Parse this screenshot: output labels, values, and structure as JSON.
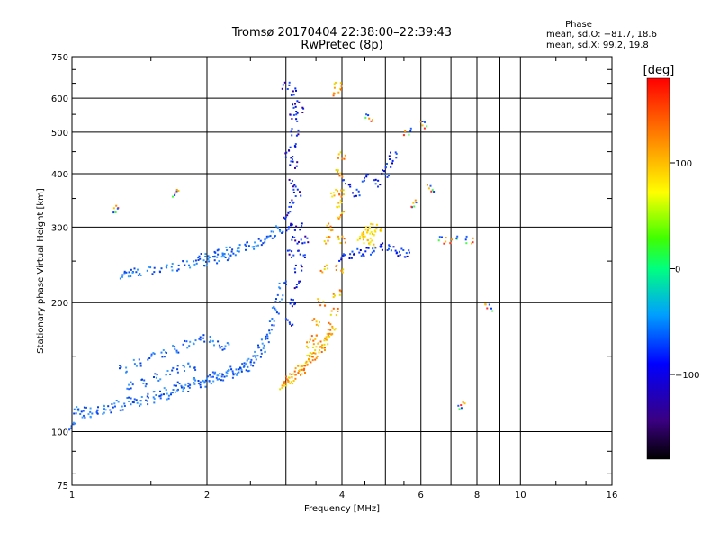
{
  "chart_data": {
    "type": "scatter",
    "title": "Tromsø 20170404 22:38:00–22:39:43",
    "subtitle": "RwPretec (8p)",
    "xlabel": "Frequency [MHz]",
    "ylabel": "Stationary phase Virtual Height [km]",
    "x_scale": "log",
    "y_scale": "log",
    "xlim": [
      1,
      16
    ],
    "ylim": [
      75,
      750
    ],
    "x_ticks": [
      1,
      2,
      4,
      6,
      8,
      10,
      16
    ],
    "x_tick_labels": [
      "1",
      "2",
      "4",
      "6",
      "8",
      "10",
      "16"
    ],
    "x_minor_ticks": [
      3,
      5,
      7,
      9
    ],
    "y_ticks": [
      75,
      100,
      200,
      300,
      400,
      500,
      600,
      750
    ],
    "y_tick_labels": [
      "75",
      "100",
      "200",
      "300",
      "400",
      "500",
      "600",
      "750"
    ],
    "y_minor_ticks": [
      150,
      250
    ],
    "grid": true,
    "stats": {
      "heading": "Phase",
      "line_o": "mean, sd,O: −81.7, 18.6",
      "line_x": "mean, sd,X:  99.2, 19.8"
    },
    "colorbar": {
      "label": "[deg]",
      "range": [
        -180,
        180
      ],
      "ticks": [
        100,
        0,
        -100
      ],
      "tick_labels": [
        "100",
        "0",
        "−100"
      ],
      "colormap": "rainbow"
    },
    "series": [
      {
        "values_description": "blue O-mode trace",
        "points": [
          [
            1.0,
            103
          ],
          [
            1.02,
            112
          ],
          [
            1.05,
            110
          ],
          [
            1.08,
            112
          ],
          [
            1.12,
            110
          ],
          [
            1.16,
            112
          ],
          [
            1.2,
            113
          ],
          [
            1.25,
            116
          ],
          [
            1.3,
            114
          ],
          [
            1.35,
            118
          ],
          [
            1.4,
            117
          ],
          [
            1.45,
            120
          ],
          [
            1.5,
            118
          ],
          [
            1.55,
            122
          ],
          [
            1.6,
            124
          ],
          [
            1.65,
            121
          ],
          [
            1.7,
            126
          ],
          [
            1.75,
            128
          ],
          [
            1.8,
            126
          ],
          [
            1.85,
            130
          ],
          [
            1.9,
            131
          ],
          [
            1.95,
            129
          ],
          [
            2.0,
            133
          ],
          [
            2.05,
            132
          ],
          [
            2.1,
            135
          ],
          [
            2.15,
            134
          ],
          [
            2.2,
            137
          ],
          [
            2.25,
            136
          ],
          [
            2.3,
            139
          ],
          [
            2.35,
            138
          ],
          [
            2.4,
            142
          ],
          [
            2.45,
            141
          ],
          [
            2.5,
            145
          ],
          [
            2.55,
            148
          ],
          [
            2.6,
            152
          ],
          [
            2.65,
            156
          ],
          [
            2.7,
            162
          ],
          [
            2.75,
            170
          ],
          [
            2.8,
            180
          ],
          [
            2.85,
            192
          ],
          [
            2.9,
            205
          ],
          [
            2.95,
            220
          ],
          [
            1.3,
            140
          ],
          [
            1.4,
            145
          ],
          [
            1.5,
            150
          ],
          [
            1.6,
            152
          ],
          [
            1.7,
            156
          ],
          [
            1.8,
            160
          ],
          [
            1.9,
            163
          ],
          [
            2.0,
            165
          ],
          [
            2.1,
            160
          ],
          [
            2.2,
            158
          ],
          [
            1.35,
            128
          ],
          [
            1.45,
            130
          ],
          [
            1.55,
            134
          ],
          [
            1.65,
            138
          ],
          [
            1.75,
            140
          ],
          [
            1.85,
            142
          ]
        ]
      },
      {
        "values_description": "blue vertical F-layer trace near 3.1 MHz",
        "points": [
          [
            3.05,
            300
          ],
          [
            3.08,
            340
          ],
          [
            3.1,
            380
          ],
          [
            3.12,
            420
          ],
          [
            3.1,
            460
          ],
          [
            3.14,
            500
          ],
          [
            3.12,
            540
          ],
          [
            3.16,
            580
          ],
          [
            3.13,
            620
          ],
          [
            3.08,
            260
          ],
          [
            3.15,
            280
          ],
          [
            3.2,
            300
          ],
          [
            3.2,
            240
          ],
          [
            3.25,
            260
          ],
          [
            3.3,
            280
          ],
          [
            3.18,
            220
          ],
          [
            3.1,
            200
          ],
          [
            3.05,
            180
          ],
          [
            3.0,
            640
          ],
          [
            3.22,
            560
          ],
          [
            3.05,
            440
          ],
          [
            3.18,
            360
          ],
          [
            3.02,
            320
          ]
        ]
      },
      {
        "values_description": "blue E/F trace 1.3–2.8 MHz around 230–280 km",
        "points": [
          [
            1.3,
            232
          ],
          [
            1.35,
            234
          ],
          [
            1.4,
            236
          ],
          [
            1.5,
            238
          ],
          [
            1.6,
            240
          ],
          [
            1.7,
            242
          ],
          [
            1.8,
            246
          ],
          [
            1.9,
            250
          ],
          [
            2.0,
            248
          ],
          [
            2.1,
            252
          ],
          [
            2.2,
            256
          ],
          [
            2.3,
            262
          ],
          [
            2.4,
            268
          ],
          [
            2.5,
            272
          ],
          [
            2.6,
            276
          ],
          [
            2.7,
            280
          ],
          [
            2.8,
            288
          ],
          [
            2.9,
            296
          ],
          [
            1.95,
            255
          ],
          [
            2.05,
            258
          ],
          [
            2.15,
            261
          ],
          [
            2.25,
            264
          ]
        ]
      },
      {
        "values_description": "blue X-mode trace 4–5.5 MHz",
        "points": [
          [
            4.0,
            255
          ],
          [
            4.2,
            258
          ],
          [
            4.4,
            262
          ],
          [
            4.6,
            264
          ],
          [
            4.8,
            268
          ],
          [
            5.0,
            270
          ],
          [
            5.2,
            266
          ],
          [
            5.4,
            262
          ],
          [
            5.6,
            260
          ],
          [
            4.8,
            380
          ],
          [
            5.0,
            400
          ],
          [
            5.1,
            420
          ],
          [
            5.2,
            440
          ],
          [
            4.1,
            380
          ],
          [
            4.3,
            360
          ],
          [
            4.5,
            390
          ]
        ]
      },
      {
        "values_description": "orange/yellow X-mode trace",
        "points": [
          [
            2.95,
            128
          ],
          [
            3.0,
            130
          ],
          [
            3.05,
            132
          ],
          [
            3.1,
            134
          ],
          [
            3.15,
            136
          ],
          [
            3.2,
            138
          ],
          [
            3.25,
            140
          ],
          [
            3.3,
            142
          ],
          [
            3.35,
            145
          ],
          [
            3.4,
            148
          ],
          [
            3.45,
            150
          ],
          [
            3.5,
            152
          ],
          [
            3.55,
            155
          ],
          [
            3.6,
            158
          ],
          [
            3.65,
            162
          ],
          [
            3.7,
            166
          ],
          [
            3.75,
            170
          ],
          [
            3.8,
            176
          ],
          [
            3.85,
            190
          ],
          [
            3.9,
            210
          ],
          [
            3.95,
            240
          ],
          [
            4.0,
            280
          ],
          [
            3.98,
            320
          ],
          [
            4.0,
            360
          ],
          [
            3.95,
            400
          ],
          [
            4.0,
            440
          ],
          [
            3.9,
            620
          ],
          [
            3.92,
            640
          ],
          [
            3.6,
            200
          ],
          [
            3.65,
            240
          ],
          [
            3.7,
            280
          ],
          [
            3.75,
            300
          ],
          [
            3.5,
            180
          ],
          [
            3.45,
            165
          ],
          [
            3.4,
            160
          ]
        ]
      },
      {
        "values_description": "yellow trace 4.4–4.8 MHz",
        "points": [
          [
            4.4,
            285
          ],
          [
            4.5,
            290
          ],
          [
            4.6,
            295
          ],
          [
            4.7,
            300
          ],
          [
            4.8,
            292
          ],
          [
            4.55,
            280
          ],
          [
            4.65,
            275
          ],
          [
            3.85,
            360
          ],
          [
            3.95,
            340
          ]
        ]
      },
      {
        "values_description": "scattered points",
        "points": [
          [
            1.7,
            360
          ],
          [
            1.25,
            330
          ],
          [
            6.3,
            370
          ],
          [
            6.7,
            280
          ],
          [
            7.1,
            280
          ],
          [
            7.7,
            280
          ],
          [
            8.5,
            195
          ],
          [
            7.4,
            115
          ],
          [
            5.8,
            340
          ],
          [
            6.1,
            520
          ],
          [
            4.6,
            540
          ],
          [
            5.6,
            500
          ]
        ]
      }
    ]
  }
}
